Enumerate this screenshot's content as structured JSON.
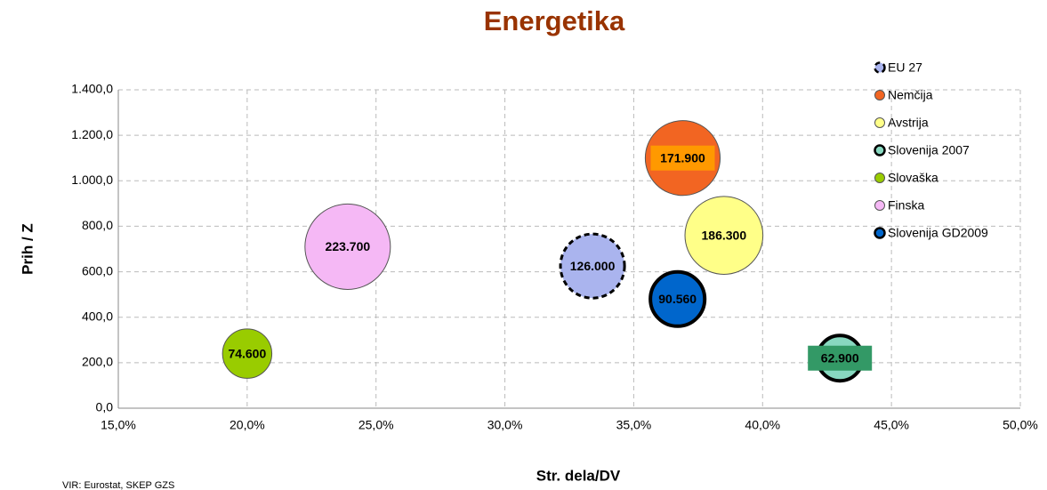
{
  "chart_data": {
    "type": "bubble",
    "title": "Energetika",
    "x_label": "Str. dela/DV",
    "y_label": "Prih / Z",
    "source": "VIR: Eurostat, SKEP GZS",
    "xlim": [
      15,
      50
    ],
    "xticks": [
      {
        "value": 15,
        "label": "15,0%"
      },
      {
        "value": 20,
        "label": "20,0%"
      },
      {
        "value": 25,
        "label": "25,0%"
      },
      {
        "value": 30,
        "label": "30,0%"
      },
      {
        "value": 35,
        "label": "35,0%"
      },
      {
        "value": 40,
        "label": "40,0%"
      },
      {
        "value": 45,
        "label": "45,0%"
      },
      {
        "value": 50,
        "label": "50,0%"
      }
    ],
    "ylim": [
      0,
      1400
    ],
    "yticks": [
      {
        "value": 0,
        "label": "0,0"
      },
      {
        "value": 200,
        "label": "200,0"
      },
      {
        "value": 400,
        "label": "400,0"
      },
      {
        "value": 600,
        "label": "600,0"
      },
      {
        "value": 800,
        "label": "800,0"
      },
      {
        "value": 1000,
        "label": "1.000,0"
      },
      {
        "value": 1200,
        "label": "1.200,0"
      },
      {
        "value": 1400,
        "label": "1.400,0"
      }
    ],
    "grid": true,
    "legend": "right",
    "series": [
      {
        "name": "EU 27",
        "color": "#aab4ee",
        "border": "dashed",
        "x": [
          33.4
        ],
        "values": [
          625
        ],
        "sizes": [
          126000
        ],
        "value_labels": [
          "126.000"
        ]
      },
      {
        "name": "Nemčija",
        "color": "#f26522",
        "x": [
          36.9
        ],
        "values": [
          1100
        ],
        "sizes": [
          171900
        ],
        "value_labels": [
          "171.900"
        ],
        "label_background": "#ff9900"
      },
      {
        "name": "Avstrija",
        "color": "#ffff88",
        "x": [
          38.5
        ],
        "values": [
          760
        ],
        "sizes": [
          186300
        ],
        "value_labels": [
          "186.300"
        ]
      },
      {
        "name": "Slovenija 2007",
        "color": "#88d8c0",
        "border": "thick",
        "x": [
          43.0
        ],
        "values": [
          220
        ],
        "sizes": [
          62900
        ],
        "value_labels": [
          "62.900"
        ],
        "label_background": "#339966"
      },
      {
        "name": "Slovaška",
        "color": "#99cc00",
        "x": [
          20.0
        ],
        "values": [
          240
        ],
        "sizes": [
          74600
        ],
        "value_labels": [
          "74.600"
        ]
      },
      {
        "name": "Finska",
        "color": "#f5b8f5",
        "x": [
          23.9
        ],
        "values": [
          710
        ],
        "sizes": [
          223700
        ],
        "value_labels": [
          "223.700"
        ]
      },
      {
        "name": "Slovenija GD2009",
        "color": "#0066cc",
        "border": "thick",
        "x": [
          36.7
        ],
        "values": [
          480
        ],
        "sizes": [
          90560
        ],
        "value_labels": [
          "90.560"
        ]
      }
    ]
  }
}
